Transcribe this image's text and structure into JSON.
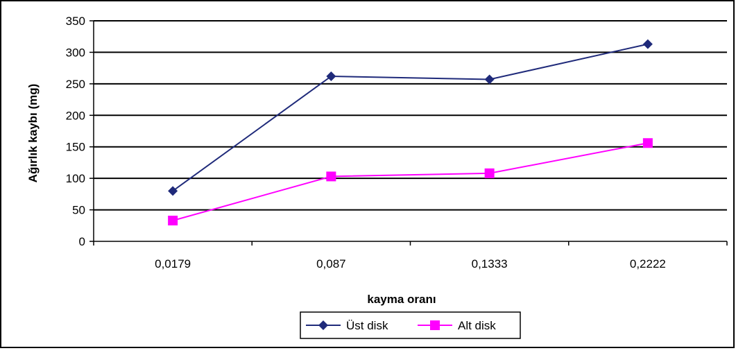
{
  "chart_data": {
    "type": "line",
    "title": "",
    "xlabel": "kayma oranı",
    "ylabel": "Ağırlık kaybı (mg)",
    "categories": [
      "0,0179",
      "0,087",
      "0,1333",
      "0,2222"
    ],
    "ylim": [
      0,
      350
    ],
    "yticks": [
      0,
      50,
      100,
      150,
      200,
      250,
      300,
      350
    ],
    "grid": true,
    "legend_position": "bottom",
    "series": [
      {
        "name": "Üst disk",
        "values": [
          80,
          262,
          257,
          313
        ],
        "color": "#1f2a7a",
        "marker": "diamond"
      },
      {
        "name": "Alt disk",
        "values": [
          33,
          103,
          108,
          156
        ],
        "color": "#ff00ff",
        "marker": "square"
      }
    ]
  }
}
